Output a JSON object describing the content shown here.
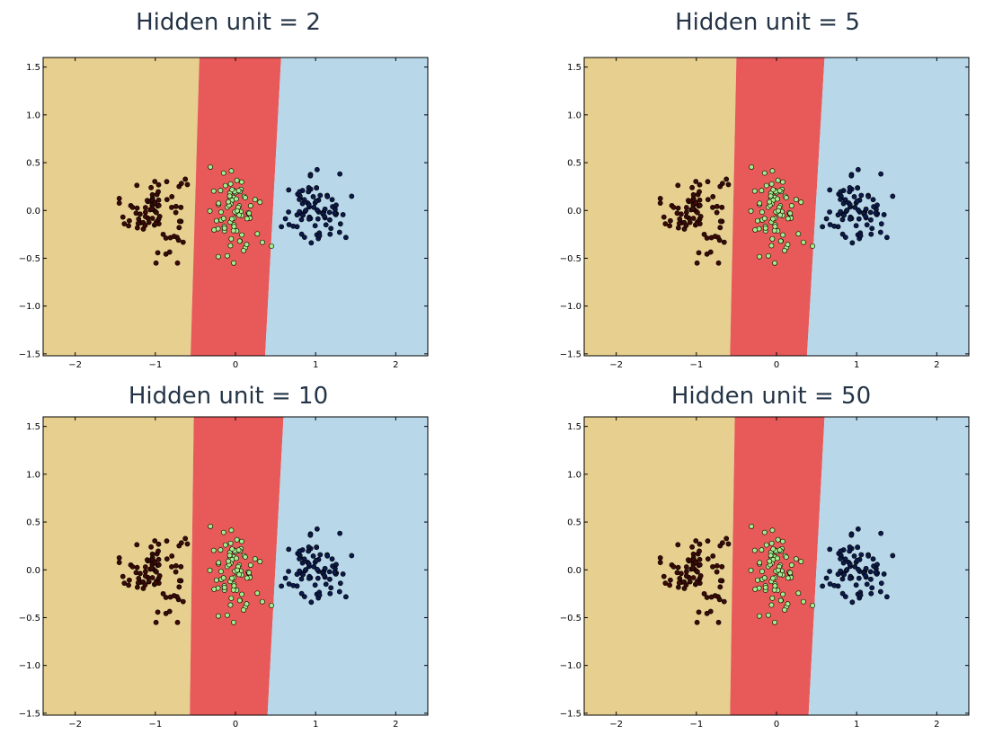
{
  "figure": {
    "colors": {
      "region_class_0": "#e6cf8f",
      "region_class_1": "#e85959",
      "region_class_2": "#b8d8ea",
      "points_class_0": "#3d0a05",
      "points_class_1": "#a5ec8a",
      "points_class_2": "#0b1a4a"
    }
  },
  "chart_data": [
    {
      "type": "scatter",
      "title": "Hidden unit = 2",
      "xlim": [
        -2.4,
        2.4
      ],
      "ylim": [
        -1.52,
        1.6
      ],
      "xticks": [
        -2,
        -1,
        0,
        1,
        2
      ],
      "xtick_labels": [
        "−2",
        "−1",
        "0",
        "1",
        "2"
      ],
      "yticks": [
        1.5,
        1.0,
        0.5,
        0.0,
        -0.5,
        -1.0,
        -1.5
      ],
      "ytick_labels": [
        "1.5",
        "1.0",
        "0.5",
        "0.0",
        "−0.5",
        "−1.0",
        "−1.5"
      ],
      "grid": false,
      "decision_boundaries": [
        {
          "between": [
            "class_0",
            "class_1"
          ],
          "x_at_ybottom": -0.56,
          "x_at_ytop": -0.45
        },
        {
          "between": [
            "class_1",
            "class_2"
          ],
          "x_at_ybottom": 0.37,
          "x_at_ytop": 0.57
        }
      ],
      "series": [
        {
          "class": "class_0",
          "n": 80,
          "center": [
            -1.0,
            0.0
          ],
          "spread": [
            0.19,
            0.21
          ]
        },
        {
          "class": "class_1",
          "n": 80,
          "center": [
            0.0,
            0.0
          ],
          "spread": [
            0.19,
            0.22
          ]
        },
        {
          "class": "class_2",
          "n": 80,
          "center": [
            1.0,
            0.0
          ],
          "spread": [
            0.19,
            0.22
          ]
        }
      ]
    },
    {
      "type": "scatter",
      "title": "Hidden unit = 5",
      "xlim": [
        -2.4,
        2.4
      ],
      "ylim": [
        -1.52,
        1.6
      ],
      "xticks": [
        -2,
        -1,
        0,
        1,
        2
      ],
      "xtick_labels": [
        "−2",
        "−1",
        "0",
        "1",
        "2"
      ],
      "yticks": [
        1.5,
        1.0,
        0.5,
        0.0,
        -0.5,
        -1.0,
        -1.5
      ],
      "ytick_labels": [
        "1.5",
        "1.0",
        "0.5",
        "0.0",
        "−0.5",
        "−1.0",
        "−1.5"
      ],
      "grid": false,
      "decision_boundaries": [
        {
          "between": [
            "class_0",
            "class_1"
          ],
          "x_at_ybottom": -0.58,
          "x_at_ytop": -0.5
        },
        {
          "between": [
            "class_1",
            "class_2"
          ],
          "x_at_ybottom": 0.38,
          "x_at_ytop": 0.6
        }
      ],
      "series": [
        {
          "class": "class_0",
          "n": 80,
          "center": [
            -1.0,
            0.0
          ],
          "spread": [
            0.19,
            0.21
          ]
        },
        {
          "class": "class_1",
          "n": 80,
          "center": [
            0.0,
            0.0
          ],
          "spread": [
            0.19,
            0.22
          ]
        },
        {
          "class": "class_2",
          "n": 80,
          "center": [
            1.0,
            0.0
          ],
          "spread": [
            0.19,
            0.22
          ]
        }
      ]
    },
    {
      "type": "scatter",
      "title": "Hidden unit = 10",
      "xlim": [
        -2.4,
        2.4
      ],
      "ylim": [
        -1.52,
        1.6
      ],
      "xticks": [
        -2,
        -1,
        0,
        1,
        2
      ],
      "xtick_labels": [
        "−2",
        "−1",
        "0",
        "1",
        "2"
      ],
      "yticks": [
        1.5,
        1.0,
        0.5,
        0.0,
        -0.5,
        -1.0,
        -1.5
      ],
      "ytick_labels": [
        "1.5",
        "1.0",
        "0.5",
        "0.0",
        "−0.5",
        "−1.0",
        "−1.5"
      ],
      "grid": false,
      "decision_boundaries": [
        {
          "between": [
            "class_0",
            "class_1"
          ],
          "x_at_ybottom": -0.57,
          "x_at_ytop": -0.52
        },
        {
          "between": [
            "class_1",
            "class_2"
          ],
          "x_at_ybottom": 0.4,
          "x_at_ytop": 0.6
        }
      ],
      "series": [
        {
          "class": "class_0",
          "n": 80,
          "center": [
            -1.0,
            0.0
          ],
          "spread": [
            0.19,
            0.21
          ]
        },
        {
          "class": "class_1",
          "n": 80,
          "center": [
            0.0,
            0.0
          ],
          "spread": [
            0.19,
            0.22
          ]
        },
        {
          "class": "class_2",
          "n": 80,
          "center": [
            1.0,
            0.0
          ],
          "spread": [
            0.19,
            0.22
          ]
        }
      ]
    },
    {
      "type": "scatter",
      "title": "Hidden unit = 50",
      "xlim": [
        -2.4,
        2.4
      ],
      "ylim": [
        -1.52,
        1.6
      ],
      "xticks": [
        -2,
        -1,
        0,
        1,
        2
      ],
      "xtick_labels": [
        "−2",
        "−1",
        "0",
        "1",
        "2"
      ],
      "yticks": [
        1.5,
        1.0,
        0.5,
        0.0,
        -0.5,
        -1.0,
        -1.5
      ],
      "ytick_labels": [
        "1.5",
        "1.0",
        "0.5",
        "0.0",
        "−0.5",
        "−1.0",
        "−1.5"
      ],
      "grid": false,
      "decision_boundaries": [
        {
          "between": [
            "class_0",
            "class_1"
          ],
          "x_at_ybottom": -0.58,
          "x_at_ytop": -0.52
        },
        {
          "between": [
            "class_1",
            "class_2"
          ],
          "x_at_ybottom": 0.4,
          "x_at_ytop": 0.6
        }
      ],
      "series": [
        {
          "class": "class_0",
          "n": 80,
          "center": [
            -1.0,
            0.0
          ],
          "spread": [
            0.19,
            0.21
          ]
        },
        {
          "class": "class_1",
          "n": 80,
          "center": [
            0.0,
            0.0
          ],
          "spread": [
            0.19,
            0.22
          ]
        },
        {
          "class": "class_2",
          "n": 80,
          "center": [
            1.0,
            0.0
          ],
          "spread": [
            0.19,
            0.22
          ]
        }
      ]
    }
  ]
}
